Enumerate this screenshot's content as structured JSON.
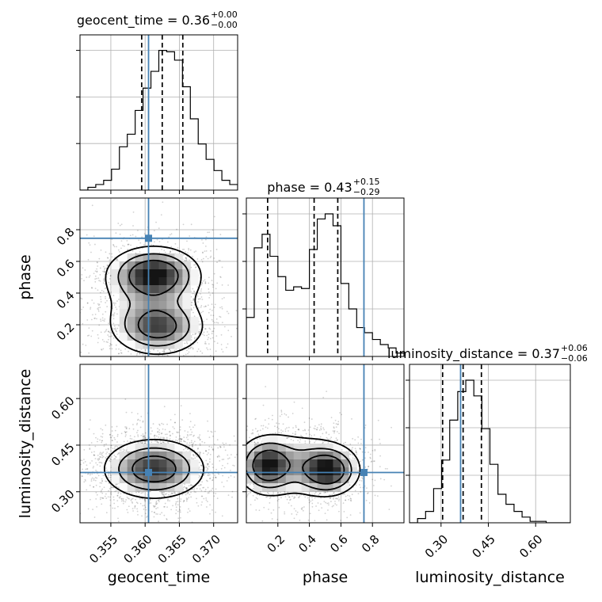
{
  "chart_data": {
    "type": "corner",
    "parameters": [
      "geocent_time",
      "phase",
      "luminosity_distance"
    ],
    "truths": {
      "geocent_time": 0.3605,
      "phase": 0.746,
      "luminosity_distance": 0.362
    },
    "titles": [
      {
        "text": "geocent_time = 0.36",
        "plus": "+0.00",
        "minus": "−0.00"
      },
      {
        "text": "phase = 0.43",
        "plus": "+0.15",
        "minus": "−0.29"
      },
      {
        "text": "luminosity_distance = 0.37",
        "plus": "+0.06",
        "minus": "−0.06"
      }
    ],
    "axis_labels": {
      "x": [
        "geocent_time",
        "phase",
        "luminosity_distance"
      ],
      "y": [
        "phase",
        "luminosity_distance"
      ]
    },
    "ranges": {
      "geocent_time": [
        0.3505,
        0.3735
      ],
      "phase": [
        0.0,
        1.0
      ],
      "luminosity_distance": [
        0.2,
        0.71
      ]
    },
    "ticks": {
      "geocent_time": [
        "0.355",
        "0.360",
        "0.365",
        "0.370"
      ],
      "phase": [
        "0.2",
        "0.4",
        "0.6",
        "0.8"
      ],
      "luminosity_distance": [
        "0.30",
        "0.45",
        "0.60"
      ]
    },
    "quantiles": {
      "geocent_time": [
        0.3595,
        0.3625,
        0.3655
      ],
      "phase": [
        0.135,
        0.43,
        0.58
      ],
      "luminosity_distance": [
        0.305,
        0.37,
        0.428
      ]
    },
    "histograms": {
      "geocent_time": {
        "edges_start": 0.3505,
        "bin_width": 0.00115,
        "counts": [
          0,
          2,
          4,
          7,
          15,
          31,
          40,
          57,
          73,
          85,
          100,
          99,
          93,
          74,
          51,
          33,
          22,
          14,
          7,
          4
        ]
      },
      "phase": {
        "edges_start": 0.0,
        "bin_width": 0.05,
        "counts": [
          23,
          64,
          72,
          59,
          47,
          39,
          41,
          40,
          63,
          81,
          84,
          77,
          43,
          28,
          17,
          14,
          10,
          7,
          5,
          2
        ]
      },
      "luminosity_distance": {
        "edges_start": 0.2,
        "bin_width": 0.0255,
        "counts": [
          0,
          3,
          8,
          24,
          44,
          72,
          92,
          100,
          89,
          66,
          41,
          20,
          13,
          8,
          4,
          1,
          1,
          0,
          0,
          0
        ]
      }
    },
    "grid": true
  }
}
